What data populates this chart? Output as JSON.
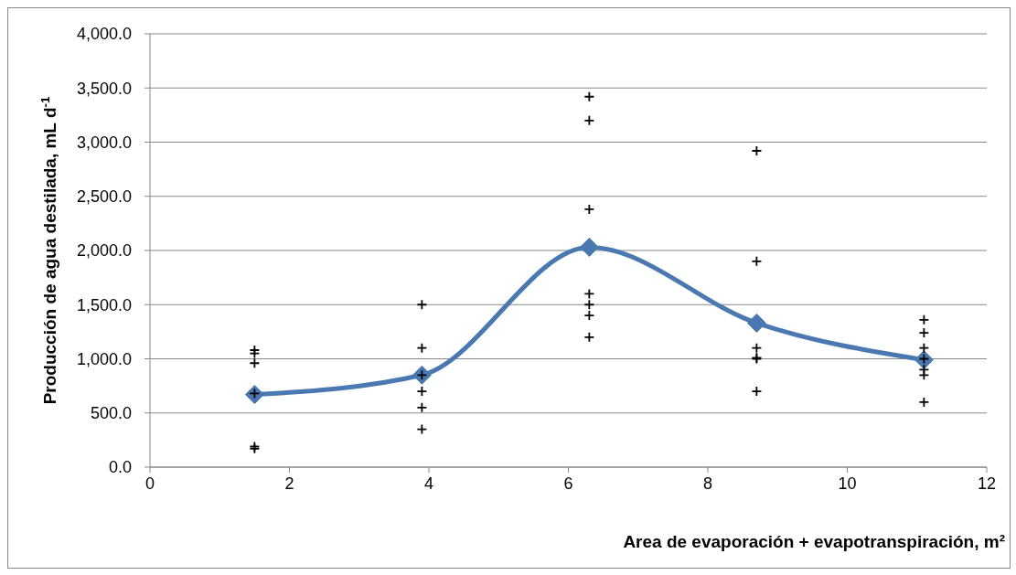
{
  "chart_data": {
    "type": "scatter",
    "xlabel": "Area de evaporación + evapotranspiración, m²",
    "ylabel": "Producción de agua destilada, mL d$^{-1}$",
    "xlim": [
      0,
      12
    ],
    "xticks": [
      0,
      2,
      4,
      6,
      8,
      10,
      12
    ],
    "ylim": [
      0,
      4000
    ],
    "yticks": [
      {
        "value": 0,
        "label": "0.0"
      },
      {
        "value": 500,
        "label": "500.0"
      },
      {
        "value": 1000,
        "label": "1,000.0"
      },
      {
        "value": 1500,
        "label": "1,500.0"
      },
      {
        "value": 2000,
        "label": "2,000.0"
      },
      {
        "value": 2500,
        "label": "2,500.0"
      },
      {
        "value": 3000,
        "label": "3,000.0"
      },
      {
        "value": 3500,
        "label": "3,500.0"
      },
      {
        "value": 4000,
        "label": "4,000.0"
      }
    ],
    "grid": "y",
    "legend": false,
    "series": [
      {
        "marker": "cross",
        "color": "#000000",
        "x": [
          1.5,
          1.5,
          1.5,
          1.5,
          1.5,
          1.5,
          3.9,
          3.9,
          3.9,
          3.9,
          3.9,
          3.9,
          6.3,
          6.3,
          6.3,
          6.3,
          6.3,
          6.3,
          6.3,
          8.7,
          8.7,
          8.7,
          8.7,
          8.7,
          8.7,
          11.1,
          11.1,
          11.1,
          11.1,
          11.1,
          11.1,
          11.1
        ],
        "values": [
          1080,
          1050,
          960,
          680,
          190,
          170,
          1500,
          1100,
          850,
          700,
          550,
          350,
          3420,
          3200,
          2380,
          1600,
          1500,
          1400,
          1200,
          2920,
          1900,
          1100,
          1010,
          1000,
          700,
          1360,
          1240,
          1100,
          1000,
          900,
          850,
          600
        ]
      },
      {
        "type": "line",
        "marker": "diamond",
        "line_style": "solid",
        "color": "#4a78b0",
        "x": [
          1.5,
          3.9,
          6.3,
          8.7,
          11.1
        ],
        "values": [
          670,
          850,
          2030,
          1330,
          990
        ]
      }
    ]
  }
}
